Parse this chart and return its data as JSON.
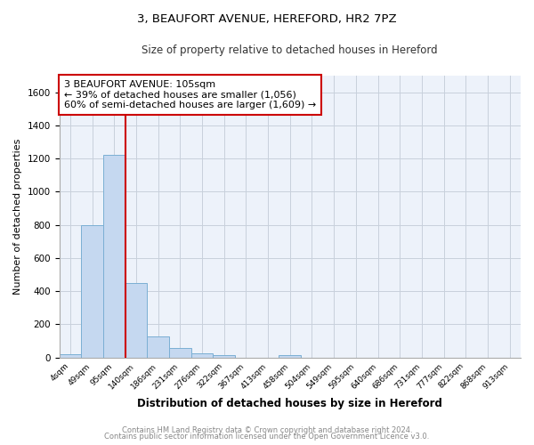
{
  "title1": "3, BEAUFORT AVENUE, HEREFORD, HR2 7PZ",
  "title2": "Size of property relative to detached houses in Hereford",
  "xlabel": "Distribution of detached houses by size in Hereford",
  "ylabel": "Number of detached properties",
  "bin_labels": [
    "4sqm",
    "49sqm",
    "95sqm",
    "140sqm",
    "186sqm",
    "231sqm",
    "276sqm",
    "322sqm",
    "367sqm",
    "413sqm",
    "458sqm",
    "504sqm",
    "549sqm",
    "595sqm",
    "640sqm",
    "686sqm",
    "731sqm",
    "777sqm",
    "822sqm",
    "868sqm",
    "913sqm"
  ],
  "bar_heights": [
    20,
    800,
    1220,
    450,
    125,
    60,
    25,
    15,
    0,
    0,
    15,
    0,
    0,
    0,
    0,
    0,
    0,
    0,
    0,
    0,
    0
  ],
  "bar_color": "#c5d8f0",
  "bar_edge_color": "#7bafd4",
  "ylim": [
    0,
    1700
  ],
  "yticks": [
    0,
    200,
    400,
    600,
    800,
    1000,
    1200,
    1400,
    1600
  ],
  "red_line_color": "#cc0000",
  "annotation_text": "3 BEAUFORT AVENUE: 105sqm\n← 39% of detached houses are smaller (1,056)\n60% of semi-detached houses are larger (1,609) →",
  "annotation_box_color": "#ffffff",
  "annotation_box_edge": "#cc0000",
  "footer1": "Contains HM Land Registry data © Crown copyright and database right 2024.",
  "footer2": "Contains public sector information licensed under the Open Government Licence v3.0.",
  "bg_color": "#edf2fa",
  "grid_color": "#c8d0dc"
}
